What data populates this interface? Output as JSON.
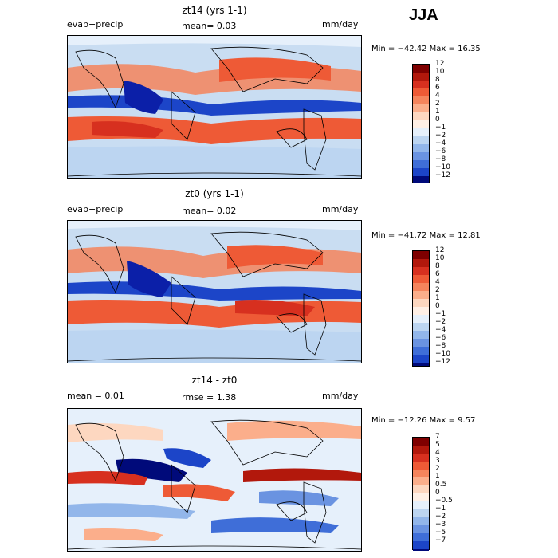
{
  "season": "JJA",
  "colors_pos": [
    "#7f0000",
    "#b2180c",
    "#d7301f",
    "#ee5a36",
    "#f5845c",
    "#fbae8b",
    "#fdd7c0",
    "#fff0e6"
  ],
  "colors_neg": [
    "#e6f0fb",
    "#bcd5f1",
    "#92b6ea",
    "#6a93e1",
    "#3f6ed8",
    "#1c45c8",
    "#0b1fa8",
    "#000a7a"
  ],
  "panels": [
    {
      "title": "zt14 (yrs 1-1)",
      "left_label": "evap−precip",
      "center_label": "mean=    0.03",
      "units": "mm/day",
      "minmax": "Min = −42.42  Max =   16.35",
      "levels": [
        "12",
        "10",
        "8",
        "6",
        "4",
        "2",
        "1",
        "0",
        "−1",
        "−2",
        "−4",
        "−6",
        "−8",
        "−10",
        "−12"
      ]
    },
    {
      "title": "zt0 (yrs 1-1)",
      "left_label": "evap−precip",
      "center_label": "mean=    0.02",
      "units": "mm/day",
      "minmax": "Min = −41.72  Max =   12.81",
      "levels": [
        "12",
        "10",
        "8",
        "6",
        "4",
        "2",
        "1",
        "0",
        "−1",
        "−2",
        "−4",
        "−6",
        "−8",
        "−10",
        "−12"
      ]
    },
    {
      "title": "zt14 - zt0",
      "left_label": "mean =    0.01",
      "center_label": "rmse =    1.38",
      "units": "mm/day",
      "minmax": "Min = −12.26  Max =    9.57",
      "levels": [
        "7",
        "5",
        "4",
        "3",
        "2",
        "1",
        "0.5",
        "0",
        "−0.5",
        "−1",
        "−2",
        "−3",
        "−5",
        "−7"
      ]
    }
  ],
  "chart_data": [
    {
      "type": "heatmap",
      "title": "zt14 (yrs 1-1)",
      "field": "evap-precip",
      "units": "mm/day",
      "mean": 0.03,
      "min": -42.42,
      "max": 16.35,
      "contour_levels": [
        12,
        10,
        8,
        6,
        4,
        2,
        1,
        0,
        -1,
        -2,
        -4,
        -6,
        -8,
        -10,
        -12
      ]
    },
    {
      "type": "heatmap",
      "title": "zt0 (yrs 1-1)",
      "field": "evap-precip",
      "units": "mm/day",
      "mean": 0.02,
      "min": -41.72,
      "max": 12.81,
      "contour_levels": [
        12,
        10,
        8,
        6,
        4,
        2,
        1,
        0,
        -1,
        -2,
        -4,
        -6,
        -8,
        -10,
        -12
      ]
    },
    {
      "type": "heatmap",
      "title": "zt14 - zt0",
      "units": "mm/day",
      "mean": 0.01,
      "rmse": 1.38,
      "min": -12.26,
      "max": 9.57,
      "contour_levels": [
        7,
        5,
        4,
        3,
        2,
        1,
        0.5,
        0,
        -0.5,
        -1,
        -2,
        -3,
        -5,
        -7
      ]
    }
  ]
}
